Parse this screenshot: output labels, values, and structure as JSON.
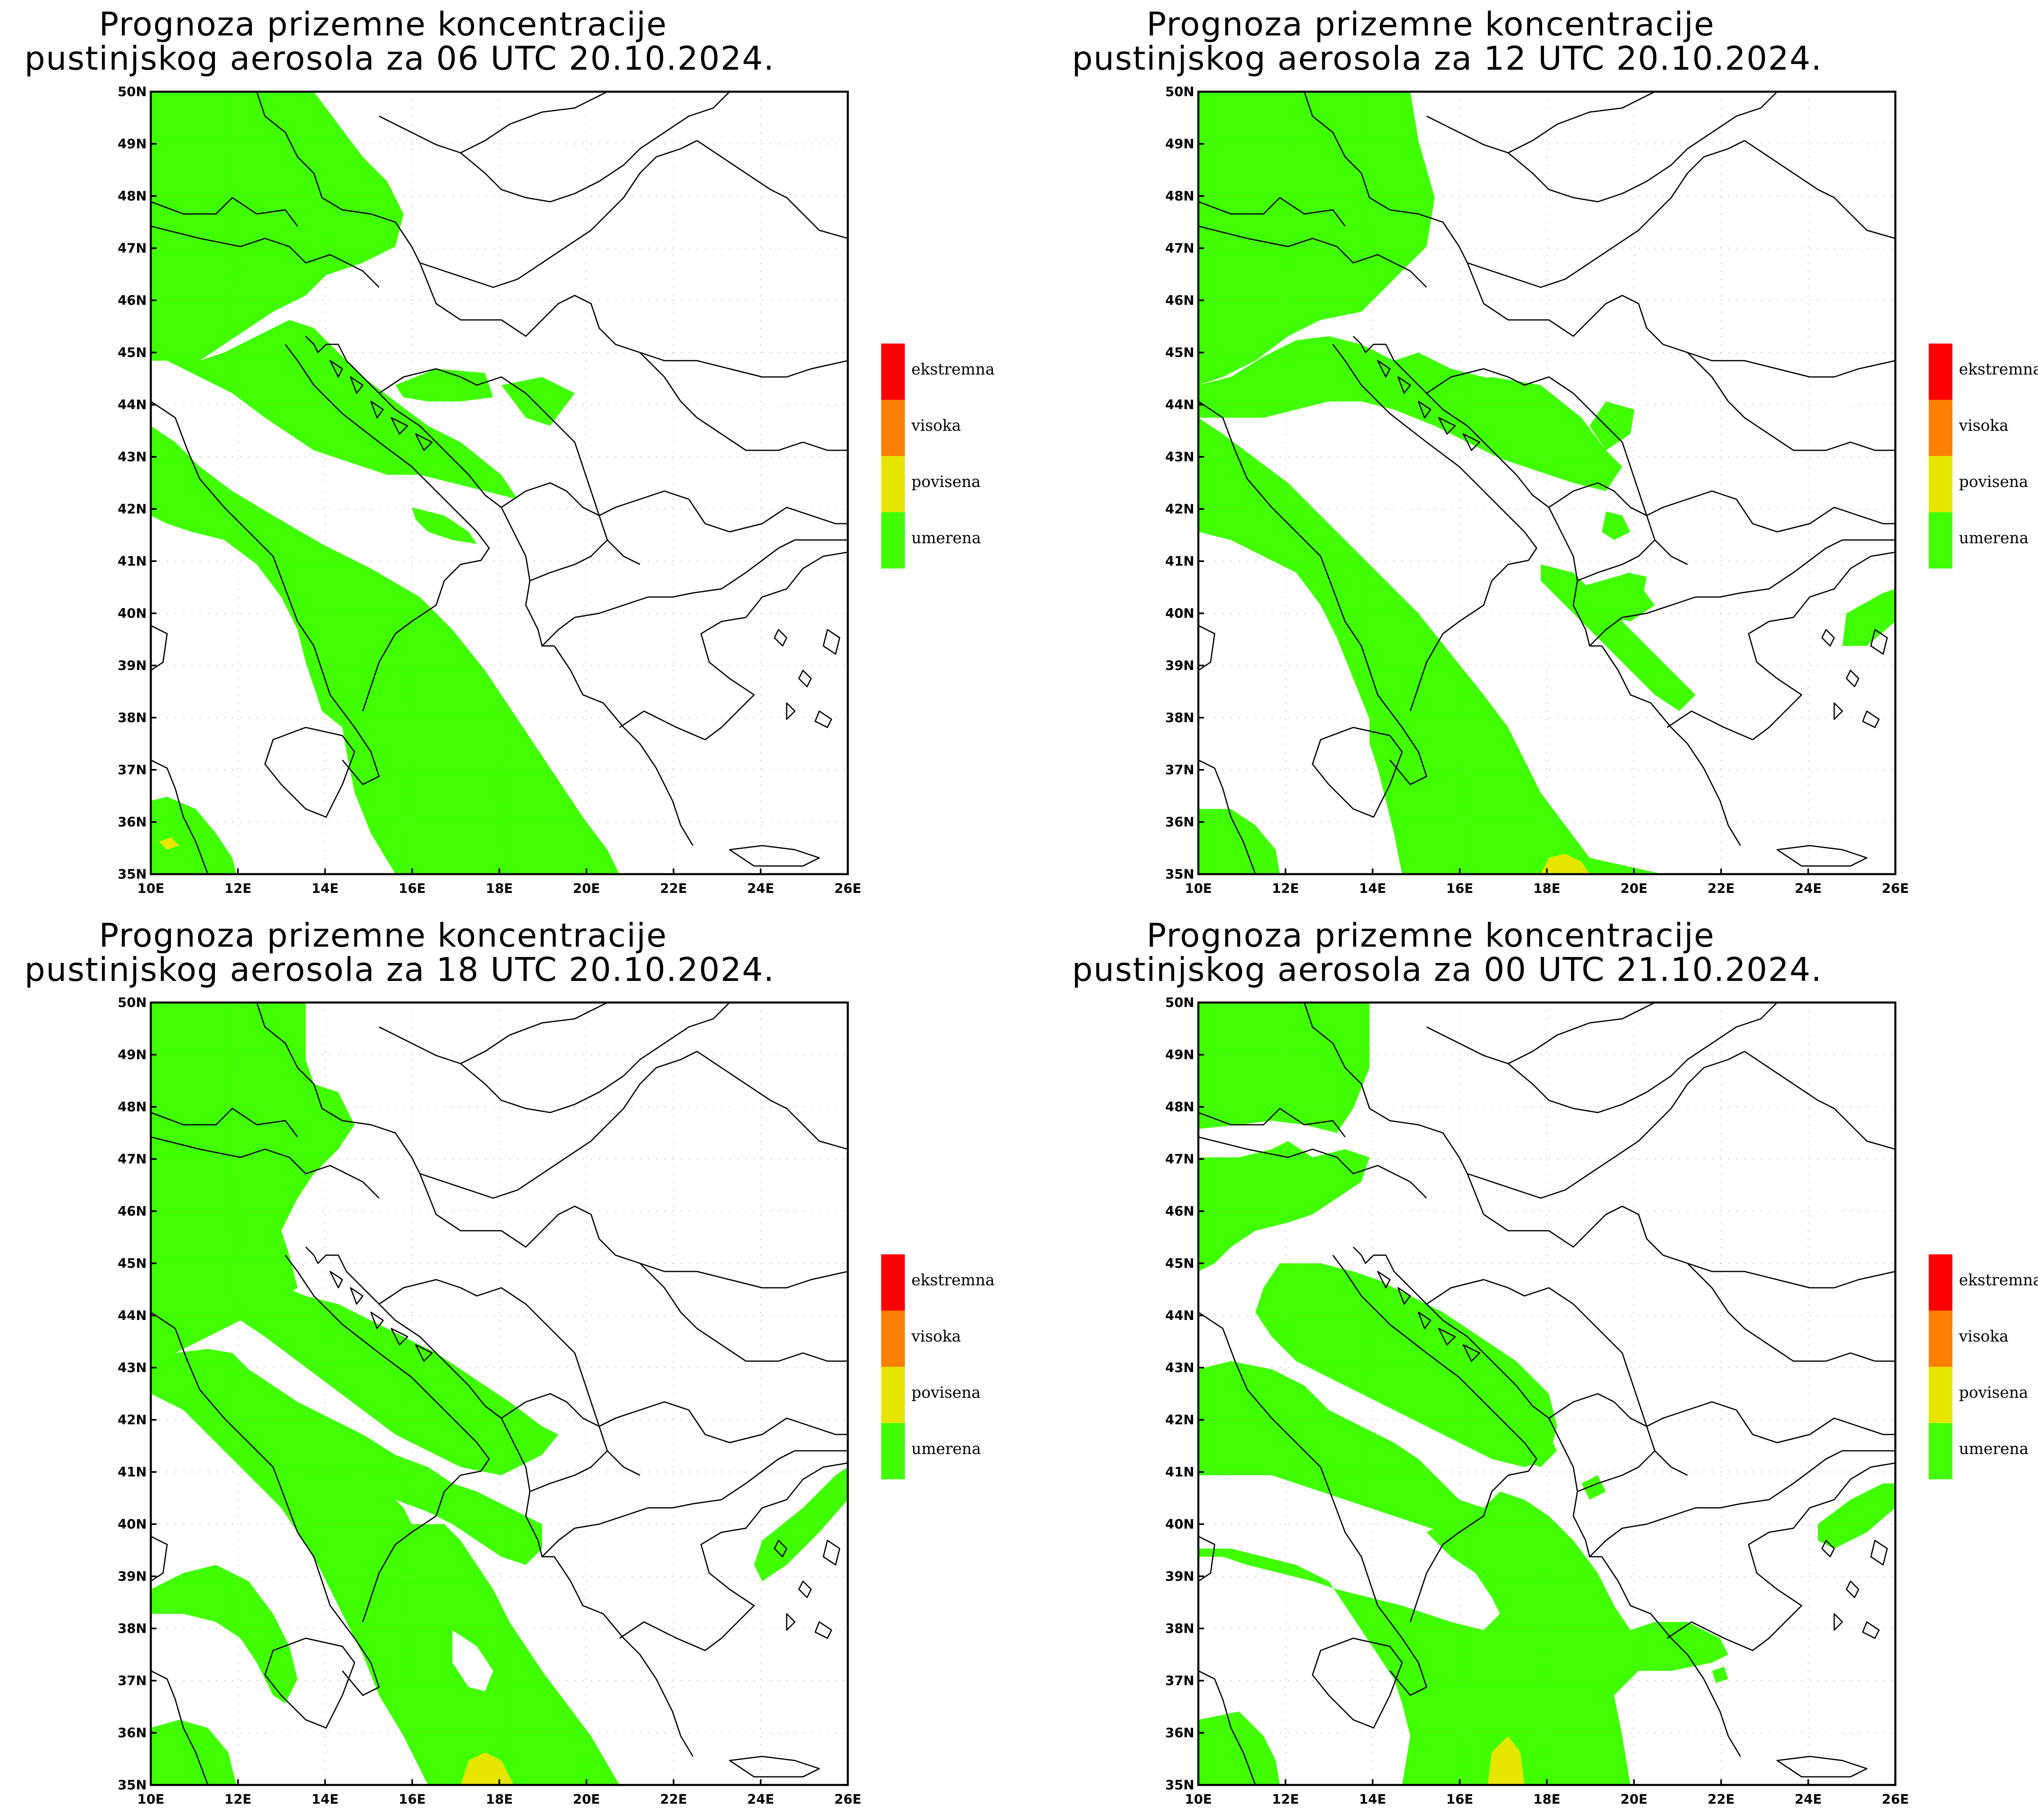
{
  "panels": [
    {
      "title_line1": "Prognoza prizemne koncentracije",
      "title_line2": "pustinjskog aerosola za 06 UTC 20.10.2024."
    },
    {
      "title_line1": "Prognoza prizemne koncentracije",
      "title_line2": "pustinjskog aerosola za 12 UTC 20.10.2024."
    },
    {
      "title_line1": "Prognoza prizemne koncentracije",
      "title_line2": "pustinjskog aerosola za 18 UTC 20.10.2024."
    },
    {
      "title_line1": "Prognoza prizemne koncentracije",
      "title_line2": "pustinjskog aerosola za 00 UTC 21.10.2024."
    }
  ],
  "axes": {
    "lon_labels": [
      "10E",
      "12E",
      "14E",
      "16E",
      "18E",
      "20E",
      "22E",
      "24E",
      "26E"
    ],
    "lat_labels": [
      "35N",
      "36N",
      "37N",
      "38N",
      "39N",
      "40N",
      "41N",
      "42N",
      "43N",
      "44N",
      "45N",
      "46N",
      "47N",
      "48N",
      "49N",
      "50N"
    ],
    "lon_range": [
      10,
      26
    ],
    "lat_range": [
      35,
      50
    ]
  },
  "legend": [
    {
      "label": "ekstremna",
      "color": "#ff0000"
    },
    {
      "label": "visoka",
      "color": "#ff8000"
    },
    {
      "label": "povisena",
      "color": "#e6e600"
    },
    {
      "label": "umerena",
      "color": "#40ff00"
    }
  ],
  "colors": {
    "umerena": "#40ff00",
    "povisena": "#e6e600",
    "coastline": "#000000",
    "grid": "#aaaaaa"
  }
}
